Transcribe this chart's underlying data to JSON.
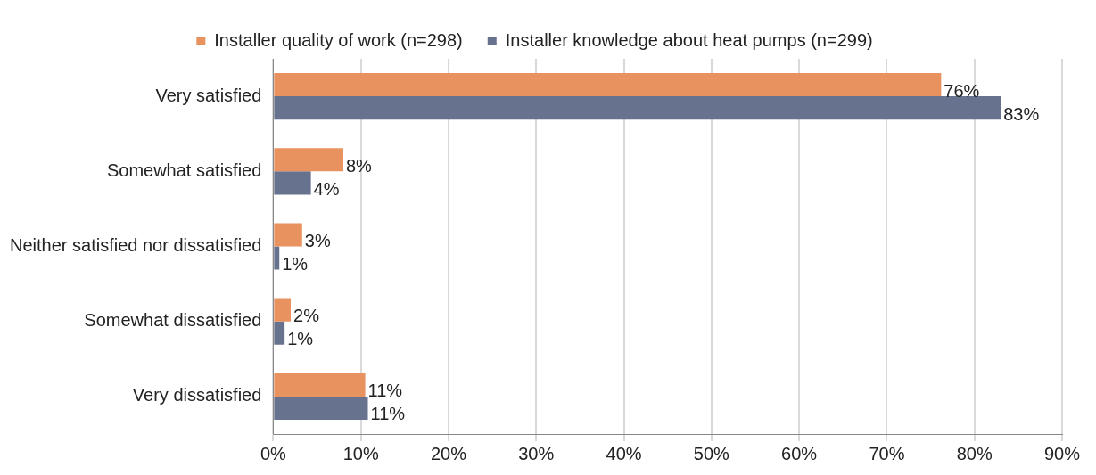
{
  "chart_data": {
    "type": "bar",
    "orientation": "horizontal",
    "categories": [
      "Very satisfied",
      "Somewhat satisfied",
      "Neither satisfied nor dissatisfied",
      "Somewhat dissatisfied",
      "Very dissatisfied"
    ],
    "series": [
      {
        "name": "Installer quality of work (n=298)",
        "color": "#e8925f",
        "values": [
          76.2,
          8.0,
          3.3,
          2.0,
          10.5
        ],
        "value_labels": [
          "76%",
          "8%",
          "3%",
          "2%",
          "11%"
        ]
      },
      {
        "name": "Installer knowledge about heat pumps (n=299)",
        "color": "#66728e",
        "values": [
          83.0,
          4.3,
          0.7,
          1.3,
          10.8
        ],
        "value_labels": [
          "83%",
          "4%",
          "1%",
          "1%",
          "11%"
        ]
      }
    ],
    "xlim": [
      0,
      90
    ],
    "xticks": [
      {
        "value": 0,
        "label": "0%"
      },
      {
        "value": 10,
        "label": "10%"
      },
      {
        "value": 20,
        "label": "20%"
      },
      {
        "value": 30,
        "label": "30%"
      },
      {
        "value": 40,
        "label": "40%"
      },
      {
        "value": 50,
        "label": "50%"
      },
      {
        "value": 60,
        "label": "60%"
      },
      {
        "value": 70,
        "label": "70%"
      },
      {
        "value": 80,
        "label": "80%"
      },
      {
        "value": 90,
        "label": "90%"
      }
    ],
    "grid": "x",
    "legend": "top"
  }
}
